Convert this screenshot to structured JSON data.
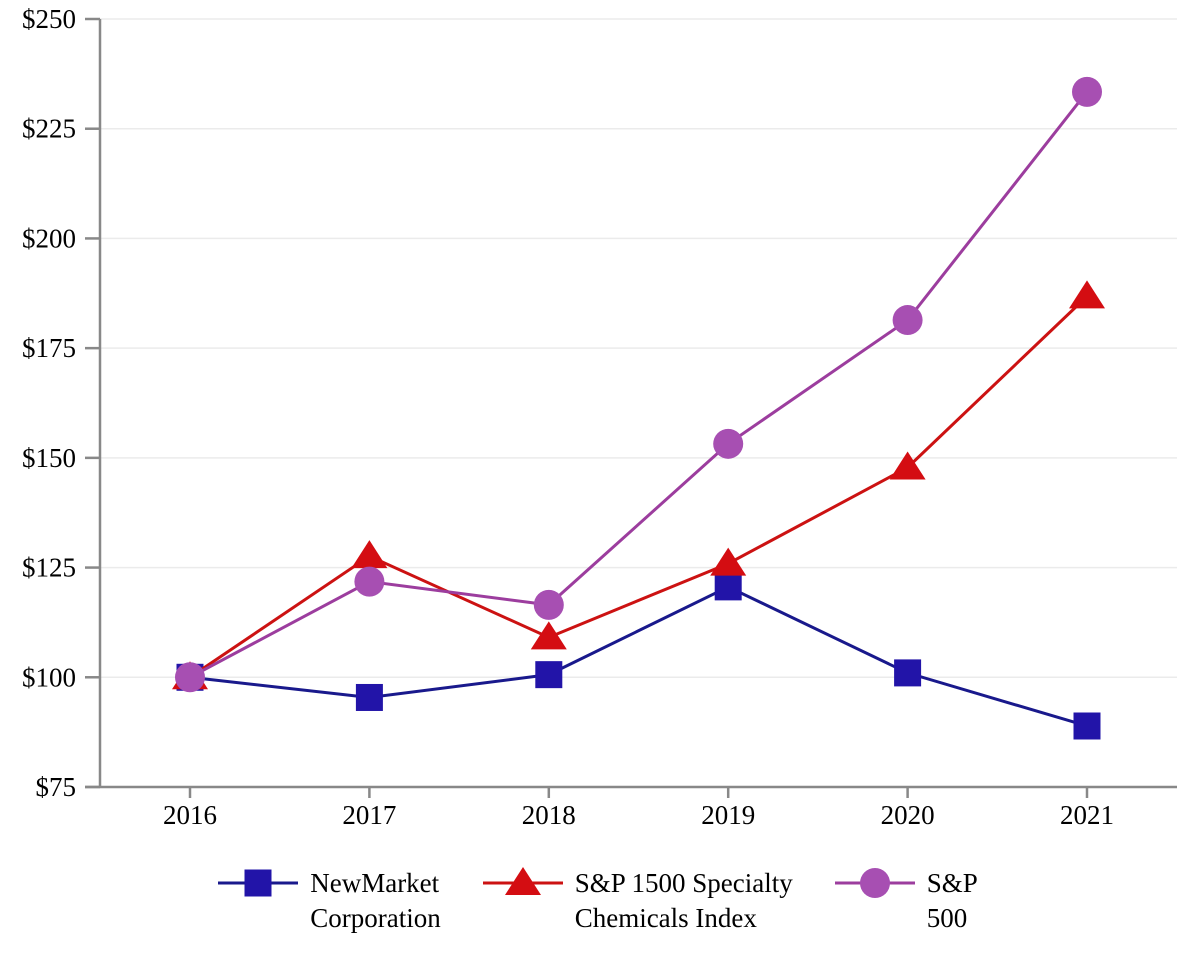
{
  "chart_data": {
    "type": "line",
    "title": "",
    "xlabel": "",
    "ylabel": "",
    "categories": [
      "2016",
      "2017",
      "2018",
      "2019",
      "2020",
      "2021"
    ],
    "series": [
      {
        "name": "NewMarket Corporation",
        "legend_label": "NewMarket\nCorporation",
        "marker": "square",
        "line_color": "#19198C",
        "marker_color": "#2214A8",
        "values": [
          100,
          95.4,
          100.6,
          120.6,
          101.0,
          88.9
        ]
      },
      {
        "name": "S&P 1500 Specialty Chemicals Index",
        "legend_label": "S&P 1500 Specialty\nChemicals Index",
        "marker": "triangle",
        "line_color": "#CC1212",
        "marker_color": "#D40D12",
        "values": [
          100,
          127.6,
          109.1,
          125.9,
          147.8,
          186.8
        ]
      },
      {
        "name": "S&P 500",
        "legend_label": "S&P\n500",
        "marker": "circle",
        "line_color": "#9C3D9E",
        "marker_color": "#A74FB2",
        "values": [
          100,
          121.8,
          116.5,
          153.2,
          181.4,
          233.4
        ]
      }
    ],
    "ylim": [
      75,
      250
    ],
    "yticks": {
      "values": [
        75,
        100,
        125,
        150,
        175,
        200,
        225,
        250
      ],
      "labels": [
        "$75",
        "$100",
        "$125",
        "$150",
        "$175",
        "$200",
        "$225",
        "$250"
      ]
    },
    "grid": true,
    "legend_position": "bottom",
    "colors": {
      "axis": "#888888",
      "gridline": "#EBEBEB",
      "text": "#000000",
      "background": "#FFFFFF"
    }
  }
}
